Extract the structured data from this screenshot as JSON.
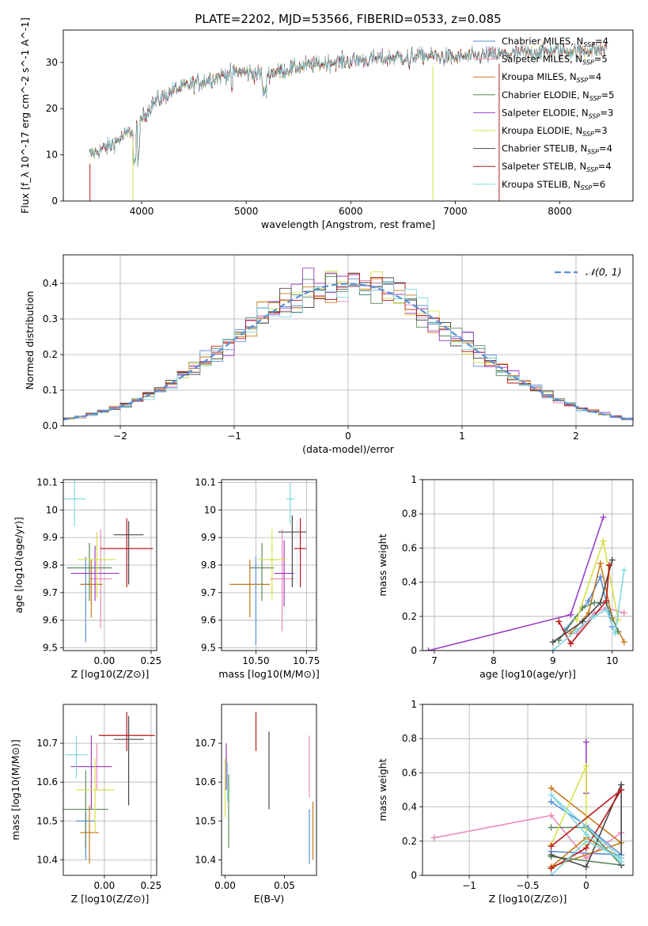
{
  "title": "PLATE=2202, MJD=53566, FIBERID=0533, z=0.085",
  "legend": [
    {
      "label": "Chabrier MILES, N_SSP=4",
      "color": "#5b8fd6"
    },
    {
      "label": "Salpeter MILES, N_SSP=5",
      "color": "#e88abb"
    },
    {
      "label": "Kroupa MILES, N_SSP=4",
      "color": "#c97a1c"
    },
    {
      "label": "Chabrier ELODIE, N_SSP=5",
      "color": "#5a8a5a"
    },
    {
      "label": "Salpeter ELODIE, N_SSP=3",
      "color": "#9a3fc4"
    },
    {
      "label": "Kroupa ELODIE, N_SSP=3",
      "color": "#d6e04a"
    },
    {
      "label": "Chabrier STELIB, N_SSP=4",
      "color": "#4a4a4a"
    },
    {
      "label": "Salpeter STELIB, N_SSP=4",
      "color": "#b81a1a"
    },
    {
      "label": "Kroupa STELIB, N_SSP=6",
      "color": "#7fd8e0"
    }
  ],
  "chart_data": [
    {
      "id": "spectrum",
      "type": "line",
      "xlabel": "wavelength [Angstrom, rest frame]",
      "ylabel": "Flux [f_λ 10^-17 erg cm^-2 s^-1 A^-1]",
      "xlim": [
        3250,
        8700
      ],
      "ylim": [
        0,
        37
      ],
      "xticks": [
        4000,
        5000,
        6000,
        7000,
        8000
      ],
      "yticks": [
        0,
        10,
        20,
        30
      ],
      "grid": false,
      "continuum": {
        "x": [
          3500,
          3700,
          3950,
          4100,
          4300,
          4600,
          4900,
          5200,
          5500,
          5800,
          6100,
          6400,
          6700,
          7000,
          7300,
          7600,
          7900,
          8200,
          8500
        ],
        "y": [
          10,
          12,
          16,
          21,
          24,
          26,
          28,
          27.5,
          29,
          30,
          30.5,
          31,
          31.5,
          31,
          31.5,
          32,
          32.5,
          32.5,
          33
        ]
      }
    },
    {
      "id": "residuals",
      "type": "histogram",
      "xlabel": "(data-model)/error",
      "ylabel": "Normed distribution",
      "xlim": [
        -2.5,
        2.5
      ],
      "ylim": [
        0,
        0.48
      ],
      "xticks": [
        -2,
        -1,
        0,
        1,
        2
      ],
      "yticks": [
        0.0,
        0.1,
        0.2,
        0.3,
        0.4
      ],
      "grid": true,
      "reference": {
        "label": "𝒩(0, 1)",
        "color": "#5b8fd6",
        "mean": 0,
        "sigma": 1
      }
    },
    {
      "id": "age_vs_Z",
      "type": "scatter",
      "xlabel": "Z [log10(Z/Z⊙)]",
      "ylabel": "age [log10(age/yr)]",
      "xlim": [
        -0.22,
        0.28
      ],
      "ylim": [
        9.49,
        10.11
      ],
      "xticks": [
        0.0,
        0.25
      ],
      "xtick_labels": [
        "0.00",
        "0.25"
      ],
      "yticks": [
        9.5,
        9.6,
        9.7,
        9.8,
        9.9,
        10.0,
        10.1
      ],
      "grid": true,
      "points": [
        {
          "x": -0.1,
          "y": 9.73,
          "xerr": 0.02,
          "yerr": [
            0.21,
            0.1
          ],
          "c": 0
        },
        {
          "x": -0.02,
          "y": 9.75,
          "xerr": 0.06,
          "yerr": [
            0.18,
            0.18
          ],
          "c": 1
        },
        {
          "x": -0.07,
          "y": 9.73,
          "xerr": 0.06,
          "yerr": [
            0.12,
            0.09
          ],
          "c": 2
        },
        {
          "x": -0.08,
          "y": 9.79,
          "xerr": 0.12,
          "yerr": [
            0.12,
            0.09
          ],
          "c": 3
        },
        {
          "x": -0.05,
          "y": 9.77,
          "xerr": 0.13,
          "yerr": [
            0.1,
            0.1
          ],
          "c": 4
        },
        {
          "x": -0.04,
          "y": 9.82,
          "xerr": 0.1,
          "yerr": [
            0.14,
            0.1
          ],
          "c": 5
        },
        {
          "x": 0.13,
          "y": 9.91,
          "xerr": 0.08,
          "yerr": [
            0.18,
            0.05
          ],
          "c": 6
        },
        {
          "x": 0.12,
          "y": 9.86,
          "xerr": 0.14,
          "yerr": [
            0.14,
            0.11
          ],
          "c": 7
        },
        {
          "x": -0.16,
          "y": 10.04,
          "xerr": 0.06,
          "yerr": [
            0.1,
            0.07
          ],
          "c": 8
        }
      ]
    },
    {
      "id": "age_vs_mass",
      "type": "scatter",
      "xlabel": "mass [log10(M/M⊙)]",
      "ylabel": "",
      "xlim": [
        10.33,
        10.8
      ],
      "ylim": [
        9.49,
        10.11
      ],
      "xticks": [
        10.5,
        10.75
      ],
      "xtick_labels": [
        "10.50",
        "10.75"
      ],
      "yticks": [
        9.5,
        9.6,
        9.7,
        9.8,
        9.9,
        10.0,
        10.1
      ],
      "grid": true,
      "points": [
        {
          "x": 10.5,
          "y": 9.73,
          "xerr": 0.03,
          "yerr": [
            0.22,
            0.1
          ],
          "c": 0
        },
        {
          "x": 10.63,
          "y": 9.75,
          "xerr": 0.06,
          "yerr": [
            0.19,
            0.18
          ],
          "c": 1
        },
        {
          "x": 10.47,
          "y": 9.73,
          "xerr": 0.1,
          "yerr": [
            0.12,
            0.09
          ],
          "c": 2
        },
        {
          "x": 10.53,
          "y": 9.79,
          "xerr": 0.06,
          "yerr": [
            0.12,
            0.09
          ],
          "c": 3
        },
        {
          "x": 10.64,
          "y": 9.77,
          "xerr": 0.05,
          "yerr": [
            0.12,
            0.12
          ],
          "c": 4
        },
        {
          "x": 10.58,
          "y": 9.82,
          "xerr": 0.07,
          "yerr": [
            0.15,
            0.11
          ],
          "c": 5
        },
        {
          "x": 10.68,
          "y": 9.92,
          "xerr": 0.07,
          "yerr": [
            0.2,
            0.06
          ],
          "c": 6
        },
        {
          "x": 10.72,
          "y": 9.86,
          "xerr": 0.03,
          "yerr": [
            0.14,
            0.11
          ],
          "c": 7
        },
        {
          "x": 10.67,
          "y": 10.04,
          "xerr": 0.02,
          "yerr": [
            0.09,
            0.06
          ],
          "c": 8
        }
      ]
    },
    {
      "id": "mass_weight_vs_age",
      "type": "line",
      "xlabel": "age [log10(age/yr)]",
      "ylabel": "mass weight",
      "xlim": [
        6.8,
        10.35
      ],
      "ylim": [
        0,
        1
      ],
      "xticks": [
        7,
        8,
        9,
        10
      ],
      "yticks": [
        0.0,
        0.2,
        0.4,
        0.6,
        0.8,
        1.0
      ],
      "grid": true,
      "series": [
        {
          "c": 0,
          "x": [
            9.2,
            9.6,
            9.8,
            10.0
          ],
          "y": [
            0.12,
            0.29,
            0.43,
            0.14
          ]
        },
        {
          "c": 1,
          "x": [
            9.4,
            9.7,
            9.9,
            10.2
          ],
          "y": [
            0.1,
            0.22,
            0.25,
            0.22
          ]
        },
        {
          "c": 2,
          "x": [
            9.3,
            9.6,
            9.8,
            10.0,
            10.2
          ],
          "y": [
            0.1,
            0.22,
            0.51,
            0.19,
            0.05
          ]
        },
        {
          "c": 3,
          "x": [
            9.1,
            9.5,
            9.7,
            9.9,
            10.1
          ],
          "y": [
            0.06,
            0.25,
            0.28,
            0.28,
            0.11
          ]
        },
        {
          "c": 4,
          "x": [
            6.9,
            9.3,
            9.85
          ],
          "y": [
            0.0,
            0.21,
            0.78
          ]
        },
        {
          "c": 5,
          "x": [
            9.4,
            9.85,
            10.1
          ],
          "y": [
            0.18,
            0.64,
            0.18
          ]
        },
        {
          "c": 6,
          "x": [
            9.0,
            9.5,
            9.8,
            10.0
          ],
          "y": [
            0.05,
            0.17,
            0.28,
            0.53
          ]
        },
        {
          "c": 7,
          "x": [
            9.1,
            9.3,
            9.9,
            9.95
          ],
          "y": [
            0.17,
            0.04,
            0.29,
            0.5
          ]
        },
        {
          "c": 8,
          "x": [
            9.0,
            9.4,
            9.7,
            9.9,
            10.05,
            10.2
          ],
          "y": [
            0.0,
            0.12,
            0.2,
            0.24,
            0.1,
            0.47
          ]
        }
      ]
    },
    {
      "id": "mass_vs_Z",
      "type": "scatter",
      "xlabel": "Z [log10(Z/Z⊙)]",
      "ylabel": "mass [log10(M/M⊙)]",
      "xlim": [
        -0.22,
        0.28
      ],
      "ylim": [
        10.36,
        10.8
      ],
      "xticks": [
        0.0,
        0.25
      ],
      "xtick_labels": [
        "0.00",
        "0.25"
      ],
      "yticks": [
        10.4,
        10.5,
        10.6,
        10.7
      ],
      "grid": true,
      "points": [
        {
          "x": -0.1,
          "y": 10.5,
          "xerr": 0.05,
          "yerr": [
            0.1,
            0.02
          ],
          "c": 0
        },
        {
          "x": -0.04,
          "y": 10.64,
          "xerr": 0.08,
          "yerr": [
            0.06,
            0.06
          ],
          "c": 1
        },
        {
          "x": -0.08,
          "y": 10.47,
          "xerr": 0.05,
          "yerr": [
            0.08,
            0.07
          ],
          "c": 2
        },
        {
          "x": -0.1,
          "y": 10.53,
          "xerr": 0.12,
          "yerr": [
            0.1,
            0.1
          ],
          "c": 3
        },
        {
          "x": -0.07,
          "y": 10.64,
          "xerr": 0.11,
          "yerr": [
            0.11,
            0.08
          ],
          "c": 4
        },
        {
          "x": -0.05,
          "y": 10.58,
          "xerr": 0.1,
          "yerr": [
            0.11,
            0.08
          ],
          "c": 5
        },
        {
          "x": 0.13,
          "y": 10.71,
          "xerr": 0.08,
          "yerr": [
            0.17,
            0.06
          ],
          "c": 6
        },
        {
          "x": 0.12,
          "y": 10.72,
          "xerr": 0.15,
          "yerr": [
            0.04,
            0.06
          ],
          "c": 7
        },
        {
          "x": -0.15,
          "y": 10.67,
          "xerr": 0.06,
          "yerr": [
            0.06,
            0.05
          ],
          "c": 8
        }
      ]
    },
    {
      "id": "mass_vs_ebv",
      "type": "scatter",
      "xlabel": "E(B-V)",
      "ylabel": "",
      "xlim": [
        -0.003,
        0.077
      ],
      "ylim": [
        10.36,
        10.8
      ],
      "xticks": [
        0.0,
        0.05
      ],
      "xtick_labels": [
        "0.00",
        "0.05"
      ],
      "yticks": [
        10.4,
        10.5,
        10.6,
        10.7
      ],
      "grid": false,
      "points": [
        {
          "x": 0.071,
          "y": 10.45,
          "yerr": [
            0.06,
            0.08
          ],
          "c": 0
        },
        {
          "x": 0.071,
          "y": 10.65,
          "yerr": [
            0.09,
            0.07
          ],
          "c": 1
        },
        {
          "x": 0.074,
          "y": 10.47,
          "yerr": [
            0.07,
            0.08
          ],
          "c": 2
        },
        {
          "x": 0.003,
          "y": 10.52,
          "yerr": [
            0.09,
            0.1
          ],
          "c": 3
        },
        {
          "x": 0.001,
          "y": 10.64,
          "yerr": [
            0.06,
            0.06
          ],
          "c": 4
        },
        {
          "x": 0.0,
          "y": 10.58,
          "yerr": [
            0.07,
            0.08
          ],
          "c": 5
        },
        {
          "x": 0.037,
          "y": 10.63,
          "yerr": [
            0.1,
            0.1
          ],
          "c": 6
        },
        {
          "x": 0.026,
          "y": 10.73,
          "yerr": [
            0.05,
            0.05
          ],
          "c": 7
        },
        {
          "x": 0.002,
          "y": 10.6,
          "yerr": [
            0.05,
            0.05
          ],
          "c": 8
        }
      ]
    },
    {
      "id": "mass_weight_vs_Z",
      "type": "line",
      "xlabel": "Z [log10(Z/Z⊙)]",
      "ylabel": "mass weight",
      "xlim": [
        -1.4,
        0.4
      ],
      "ylim": [
        0,
        1
      ],
      "xticks": [
        -1.0,
        -0.5,
        0.0
      ],
      "yticks": [
        0.0,
        0.2,
        0.4,
        0.6,
        0.8,
        1.0
      ],
      "grid": true,
      "series": [
        {
          "c": 0,
          "x": [
            -0.3,
            0.0,
            0.3,
            -0.3
          ],
          "y": [
            0.43,
            0.29,
            0.12,
            0.14
          ]
        },
        {
          "c": 1,
          "x": [
            -1.3,
            -0.3,
            0.0,
            0.3
          ],
          "y": [
            0.22,
            0.35,
            0.1,
            0.25
          ]
        },
        {
          "c": 2,
          "x": [
            -0.3,
            0.3,
            -0.3,
            0.0,
            0.3
          ],
          "y": [
            0.51,
            0.19,
            0.05,
            0.22,
            0.1
          ]
        },
        {
          "c": 3,
          "x": [
            -0.3,
            0.0,
            0.3,
            -0.3
          ],
          "y": [
            0.28,
            0.28,
            0.06,
            0.11
          ]
        },
        {
          "c": 4,
          "x": [
            0.0,
            0.0
          ],
          "y": [
            0.48,
            0.78
          ]
        },
        {
          "c": 5,
          "x": [
            -0.3,
            0.0,
            0.0
          ],
          "y": [
            0.18,
            0.64,
            0.18
          ]
        },
        {
          "c": 6,
          "x": [
            -0.3,
            0.0,
            0.3,
            0.3
          ],
          "y": [
            0.12,
            0.05,
            0.53,
            0.06
          ]
        },
        {
          "c": 7,
          "x": [
            -0.3,
            0.0,
            0.3,
            -0.3
          ],
          "y": [
            0.04,
            0.16,
            0.5,
            0.17
          ]
        },
        {
          "c": 8,
          "x": [
            -0.3,
            0.0,
            0.3,
            -0.3,
            0.0,
            0.3
          ],
          "y": [
            0.0,
            0.2,
            0.1,
            0.47,
            0.24,
            0.08
          ]
        }
      ]
    }
  ]
}
